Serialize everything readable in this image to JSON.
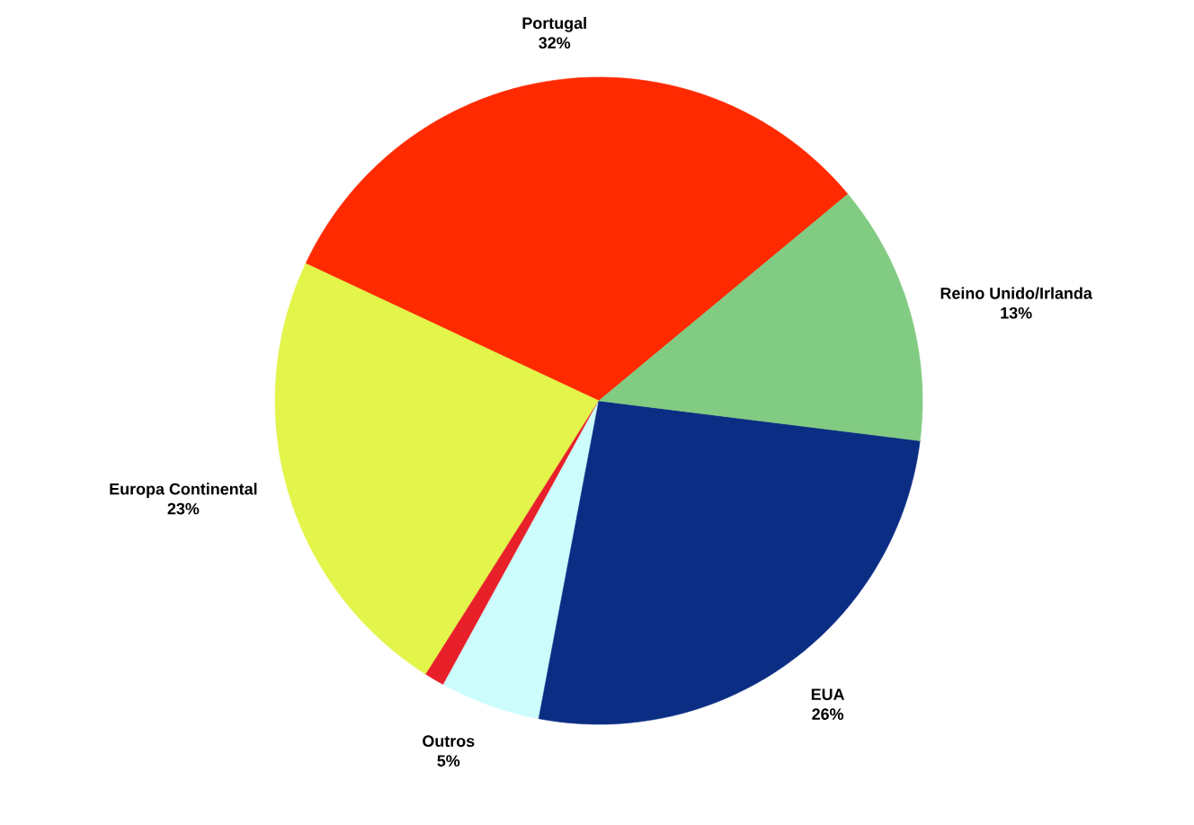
{
  "chart_data": {
    "type": "pie",
    "categories": [
      "Portugal",
      "Europa Continental",
      null,
      "Outros",
      "EUA",
      "Reino Unido/Irlanda"
    ],
    "values": [
      32,
      23,
      1,
      5,
      26,
      13
    ],
    "value_labels": [
      "32%",
      "23%",
      null,
      "5%",
      "26%",
      "13%"
    ],
    "colors": [
      "#ff2a00",
      "#e3f44a",
      "#e8202a",
      "#ccfcfc",
      "#0c2d84",
      "#82cb82"
    ]
  }
}
